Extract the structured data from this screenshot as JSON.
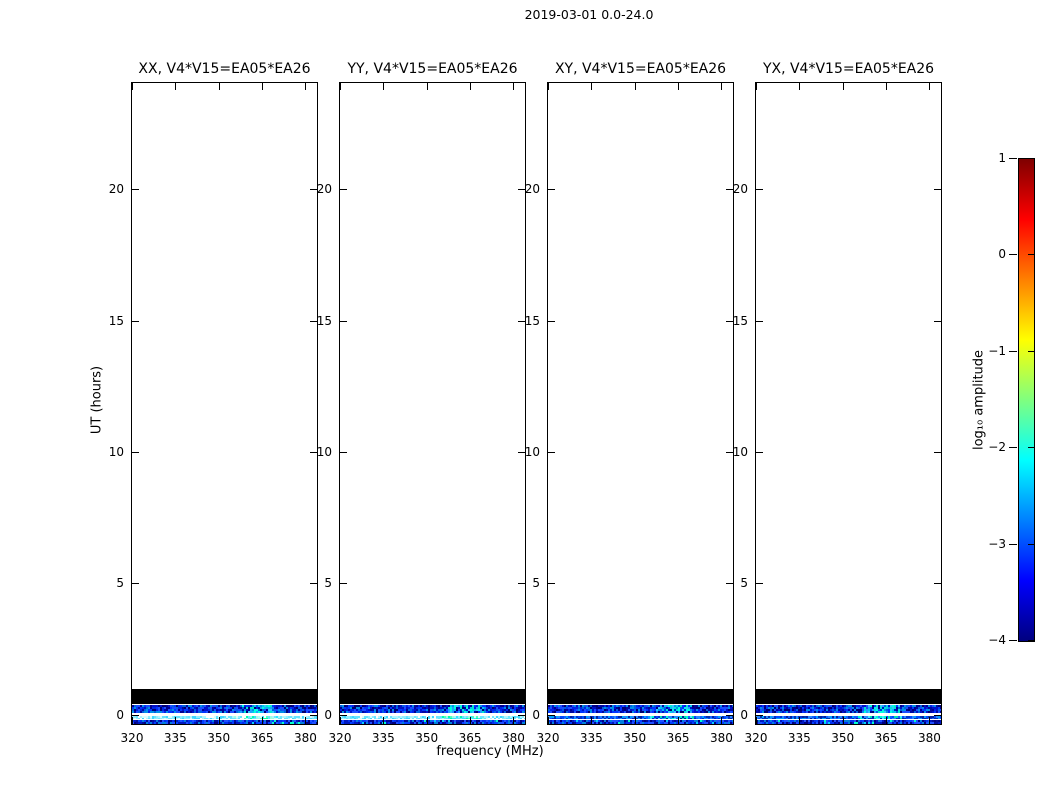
{
  "chart_data": {
    "type": "heatmap",
    "title": "2019-03-01 0.0-24.0",
    "xlabel": "frequency (MHz)",
    "ylabel": "UT (hours)",
    "x_range": [
      320,
      384
    ],
    "y_range": [
      -0.35,
      24.05
    ],
    "x_ticks": [
      320,
      335,
      350,
      365,
      380
    ],
    "y_ticks": [
      0,
      5,
      10,
      15,
      20
    ],
    "grid": false,
    "panels": [
      {
        "id": "xx",
        "title": "XX, V4*V15=EA05*EA26",
        "line_style": "bright"
      },
      {
        "id": "yy",
        "title": "YY, V4*V15=EA05*EA26",
        "line_style": "bright"
      },
      {
        "id": "xy",
        "title": "XY, V4*V15=EA05*EA26",
        "line_style": "dim"
      },
      {
        "id": "yx",
        "title": "YX, V4*V15=EA05*EA26",
        "line_style": "dim"
      }
    ],
    "description": "Four polarization waterfall panels, blank (white) above UT~1h; each shows a solid black flagged band near UT 0.4-1.0 and narrow speckled blue/cyan RFI bands near UT -0.35-0.4 with a cyan-green enhancement around 358-370 MHz",
    "bands": [
      {
        "name": "flagged-black",
        "type": "solid",
        "color": "#000000",
        "y0": 0.9455,
        "y1": 0.969,
        "ut": [
          0.41,
          0.98
        ]
      },
      {
        "name": "rfi-upper",
        "type": "speckle",
        "y0": 0.97,
        "y1": 0.983,
        "ut": [
          0.07,
          0.38
        ],
        "base": "#0008a0",
        "palette": [
          "#0010c8",
          "#0022e6",
          "#0035ff",
          "#000090",
          "#1a4cff",
          "#0060e0",
          "#000070",
          "#0090e8"
        ],
        "patch": {
          "x0": 0.58,
          "x1": 0.775,
          "freq_mhz": [
            357,
            370
          ],
          "p": 0.5,
          "palette": [
            "#00c8f0",
            "#00e8d0",
            "#30c8ff",
            "#00ffe0",
            "#20a0ff"
          ]
        }
      },
      {
        "name": "rfi-line",
        "type": "line",
        "y0": 0.9868,
        "y1": 0.9915,
        "ut": [
          -0.14,
          -0.03
        ],
        "patch": {
          "x0": 0.55,
          "x1": 0.78,
          "freq_mhz": [
            355,
            370
          ],
          "p": 0.45
        }
      },
      {
        "name": "rfi-lower",
        "type": "speckle",
        "y0": 0.9938,
        "y1": 1.0,
        "ut": [
          -0.35,
          -0.2
        ],
        "base": "#000a9a",
        "palette": [
          "#0018c0",
          "#0030f0",
          "#0040ff",
          "#000080",
          "#2050ff",
          "#0080dd"
        ],
        "patch": {
          "x0": 0.1,
          "x1": 0.95,
          "freq_mhz": [
            326,
            381
          ],
          "p": 0.06,
          "palette": [
            "#00d0ff",
            "#00ffcc"
          ]
        }
      }
    ],
    "line_palettes": {
      "bright": {
        "base": "#70e8ff",
        "palette": [
          "#ffffff",
          "#b0f6ff",
          "#66e4ff",
          "#d8ffff",
          "#40d8ff",
          "#90f0ff"
        ],
        "patch_palette": [
          "#50ffc0",
          "#00ffaa",
          "#a0ffe0",
          "#30e8ff"
        ]
      },
      "dim": {
        "base": "#0030cc",
        "palette": [
          "#0048ff",
          "#1060ff",
          "#2888ff",
          "#0030b0",
          "#00a0ff",
          "#0020a0"
        ],
        "patch_palette": [
          "#00ffcc",
          "#00e0b0",
          "#40eeff"
        ]
      }
    },
    "colorbar": {
      "label": "log₁₀ amplitude",
      "colormap": "jet",
      "range": [
        -4,
        1
      ],
      "tick_values": [
        1,
        0,
        -1,
        -2,
        -3,
        -4
      ],
      "tick_labels": [
        "1",
        "0",
        "−1",
        "−2",
        "−3",
        "−4"
      ],
      "gradient_stops": [
        [
          "#7f0000",
          0
        ],
        [
          "#ff0000",
          12.5
        ],
        [
          "#ffff00",
          37.5
        ],
        [
          "#00ffff",
          62.5
        ],
        [
          "#0000ff",
          87.5
        ],
        [
          "#00007f",
          100
        ]
      ]
    }
  }
}
